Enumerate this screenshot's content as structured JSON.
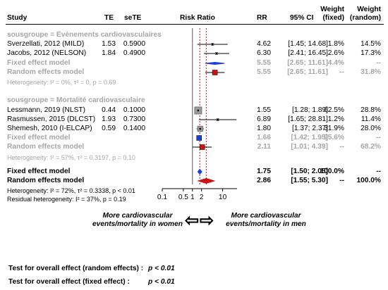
{
  "header": {
    "study": "Study",
    "te": "TE",
    "sete": "seTE",
    "risk_ratio": "Risk Ratio",
    "rr": "RR",
    "ci": "95% CI",
    "weight_fixed_1": "Weight",
    "weight_fixed_2": "(fixed)",
    "weight_random_1": "Weight",
    "weight_random_2": "(random)"
  },
  "chart_data": {
    "type": "forest",
    "x_scale": "log",
    "x_ticks": [
      0.1,
      0.5,
      1,
      2,
      10
    ],
    "x_tick_labels": [
      "0.1",
      "0.5",
      "1",
      "2",
      "10"
    ],
    "left_label": "More cardiovascular events/mortality in women",
    "right_label": "More cardiovascular events/mortality in men",
    "groups": [
      {
        "title": "sousgroupe = Evènements cardiovasculaires",
        "studies": [
          {
            "name": "Sverzellati, 2012 (MILD)",
            "te": "1.53",
            "sete": "0.5900",
            "rr": 4.62,
            "lo": 1.45,
            "hi": 14.68,
            "rr_text": "4.62",
            "ci_text": "[1.45; 14.68]",
            "w_fixed": "1.8%",
            "w_random": "14.5%"
          },
          {
            "name": "Jacobs, 2012 (NELSON)",
            "te": "1.84",
            "sete": "0.4900",
            "rr": 6.3,
            "lo": 2.41,
            "hi": 16.45,
            "rr_text": "6.30",
            "ci_text": "[2.41; 16.45]",
            "w_fixed": "2.6%",
            "w_random": "17.3%"
          }
        ],
        "fixed": {
          "label": "Fixed effect model",
          "rr": 5.55,
          "lo": 2.65,
          "hi": 11.61,
          "rr_text": "5.55",
          "ci_text": "[2.65; 11.61]",
          "w_fixed": "4.4%",
          "w_random": "--"
        },
        "random": {
          "label": "Random effects model",
          "rr": 5.55,
          "lo": 2.65,
          "hi": 11.61,
          "rr_text": "5.55",
          "ci_text": "[2.65; 11.61]",
          "w_fixed": "--",
          "w_random": "31.8%"
        },
        "heterogeneity": "Heterogeneity: I² = 0%, τ² = 0, p = 0.69"
      },
      {
        "title": "sousgroupe = Mortalité cardiovasculaire",
        "studies": [
          {
            "name": "Lessmann, 2019 (NLST)",
            "te": "0.44",
            "sete": "0.1000",
            "rr": 1.55,
            "lo": 1.28,
            "hi": 1.89,
            "rr_text": "1.55",
            "ci_text": "[1.28; 1.89]",
            "w_fixed": "62.5%",
            "w_random": "28.8%"
          },
          {
            "name": "Rasmussen, 2015 (DLCST)",
            "te": "1.93",
            "sete": "0.7300",
            "rr": 6.89,
            "lo": 1.65,
            "hi": 28.81,
            "rr_text": "6.89",
            "ci_text": "[1.65; 28.81]",
            "w_fixed": "1.2%",
            "w_random": "11.4%"
          },
          {
            "name": "Shemesh, 2010 (I-ELCAP)",
            "te": "0.59",
            "sete": "0.1400",
            "rr": 1.8,
            "lo": 1.37,
            "hi": 2.37,
            "rr_text": "1.80",
            "ci_text": "[1.37; 2.37]",
            "w_fixed": "31.9%",
            "w_random": "28.0%"
          }
        ],
        "fixed": {
          "label": "Fixed effect model",
          "rr": 1.66,
          "lo": 1.42,
          "hi": 1.95,
          "rr_text": "1.66",
          "ci_text": "[1.42; 1.95]",
          "w_fixed": "95.6%",
          "w_random": "--"
        },
        "random": {
          "label": "Random effects model",
          "rr": 2.11,
          "lo": 1.01,
          "hi": 4.39,
          "rr_text": "2.11",
          "ci_text": "[1.01; 4.39]",
          "w_fixed": "--",
          "w_random": "68.2%"
        },
        "heterogeneity": "Heterogeneity: I² = 57%, τ² = 0.3197, p = 0.10"
      }
    ],
    "overall_fixed": {
      "label": "Fixed effect model",
      "rr": 1.75,
      "lo": 1.5,
      "hi": 2.05,
      "rr_text": "1.75",
      "ci_text": "[1.50; 2.05]",
      "w_fixed": "100.0%",
      "w_random": "--"
    },
    "overall_random": {
      "label": "Random effects model",
      "rr": 2.86,
      "lo": 1.55,
      "hi": 5.3,
      "rr_text": "2.86",
      "ci_text": "[1.55; 5.30]",
      "w_fixed": "--",
      "w_random": "100.0%"
    },
    "overall_heterogeneity": "Heterogeneity: I² = 72%, τ² = 0.3338, p < 0.01",
    "residual_heterogeneity": "Residual heterogeneity: I² = 37%, p = 0.19"
  },
  "footer": {
    "test_random_label": "Test for overall effect (random effects) :",
    "test_random_value": "p < 0.01",
    "test_fixed_label": "Test for overall effect (fixed effect) :",
    "test_fixed_value": "p < 0.01"
  },
  "colors": {
    "fixed": "#1f3fd6",
    "random": "#d01010",
    "grey": "#a6a6a6",
    "vline_overall": "#d01010"
  }
}
